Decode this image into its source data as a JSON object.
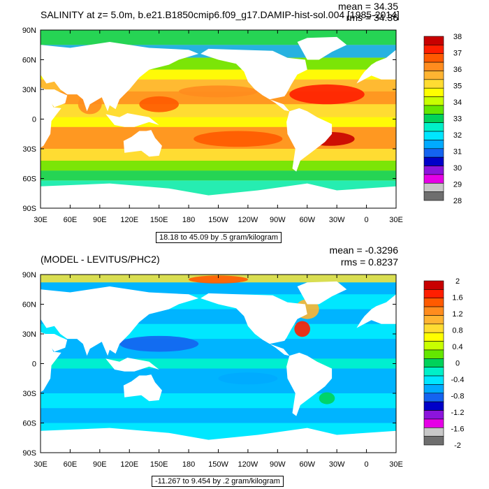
{
  "chart_data": [
    {
      "type": "heatmap",
      "subtype": "filled-contour-map",
      "title": "SALINITY at z=   5.0m, b.e21.B1850cmip6.f09_g17.DAMIP-hist-sol.004 [1985-2014]",
      "mean_text": "mean = 34.35",
      "rms_text": "rms = 34.36",
      "contour_info": "18.18 to 45.09 by .5 gram/kilogram",
      "x_ticks": [
        "30E",
        "60E",
        "90E",
        "120E",
        "150E",
        "180",
        "150W",
        "120W",
        "90W",
        "60W",
        "30W",
        "0",
        "30E"
      ],
      "y_ticks": [
        "90N",
        "60N",
        "30N",
        "0",
        "30S",
        "60S",
        "90S"
      ],
      "colorbar": {
        "labels": [
          "38",
          "37",
          "36",
          "35",
          "34",
          "33",
          "32",
          "31",
          "30",
          "29",
          "28"
        ],
        "colors": [
          "#c80000",
          "#ff1e00",
          "#ff5a00",
          "#ff8c1e",
          "#ffb432",
          "#ffdc32",
          "#ffff00",
          "#c8ff00",
          "#64e600",
          "#00d25a",
          "#00f0c8",
          "#00e6ff",
          "#00aaff",
          "#1464f0",
          "#0000c8",
          "#8c14dc",
          "#e600e6",
          "#c8c8c8",
          "#6e6e6e"
        ]
      }
    },
    {
      "type": "heatmap",
      "subtype": "filled-contour-map",
      "title": "(MODEL - LEVITUS/PHC2)",
      "mean_text": "mean = -0.3296",
      "rms_text": "rms = 0.8237",
      "contour_info": "-11.267 to 9.454 by .2 gram/kilogram",
      "x_ticks": [
        "30E",
        "60E",
        "90E",
        "120E",
        "150E",
        "180",
        "150W",
        "120W",
        "90W",
        "60W",
        "30W",
        "0",
        "30E"
      ],
      "y_ticks": [
        "90N",
        "60N",
        "30N",
        "0",
        "30S",
        "60S",
        "90S"
      ],
      "colorbar": {
        "labels": [
          "2",
          "1.6",
          "1.2",
          "0.8",
          "0.4",
          "0",
          "-0.4",
          "-0.8",
          "-1.2",
          "-1.6",
          "-2"
        ],
        "colors": [
          "#c80000",
          "#ff1e00",
          "#ff5a00",
          "#ff8c1e",
          "#ffb432",
          "#ffdc32",
          "#ffff00",
          "#c8ff00",
          "#64e600",
          "#00d25a",
          "#00f0c8",
          "#00e6ff",
          "#00aaff",
          "#1464f0",
          "#0000c8",
          "#8c14dc",
          "#e600e6",
          "#c8c8c8",
          "#6e6e6e"
        ]
      }
    }
  ]
}
